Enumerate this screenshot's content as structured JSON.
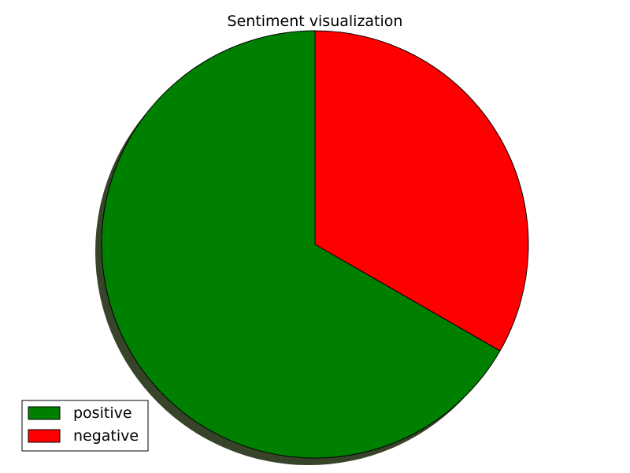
{
  "chart_data": {
    "type": "pie",
    "title": "Sentiment visualization",
    "labels": [
      "positive",
      "negative"
    ],
    "values": [
      66.7,
      33.3
    ],
    "colors": [
      "#008000",
      "#ff0000"
    ],
    "start_angle_deg": 90,
    "direction": "counterclockwise",
    "shadow": true,
    "legend": "lower-left"
  }
}
